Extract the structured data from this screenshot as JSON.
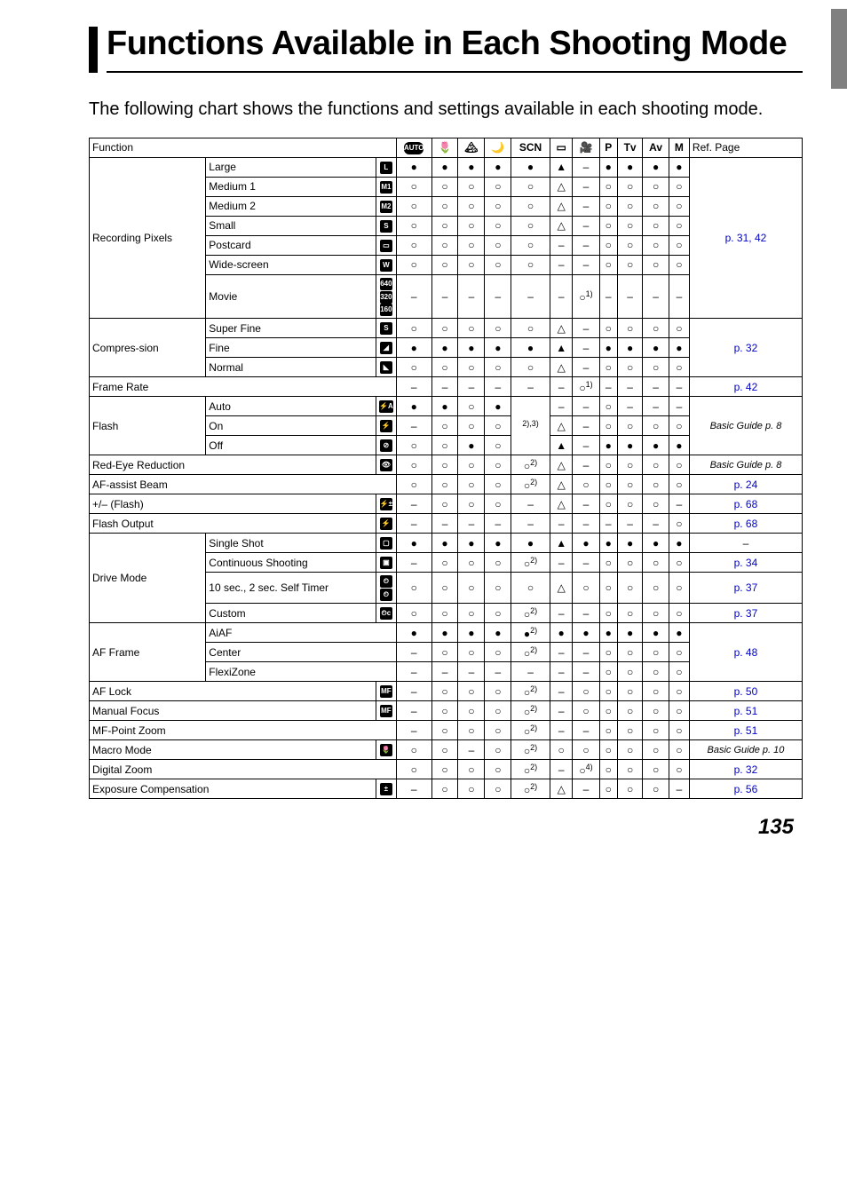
{
  "title": "Functions Available in Each Shooting Mode",
  "lead": "The following chart shows the functions and settings available in each shooting mode.",
  "headers": {
    "function": "Function",
    "refpage": "Ref. Page",
    "modes": [
      "AUTO",
      "🌷",
      "🏔",
      "🌙",
      "SCN",
      "▭",
      "🎥",
      "P",
      "Tv",
      "Av",
      "M"
    ]
  },
  "symbols": {
    "filled": "●",
    "hollow": "○",
    "triangle": "▲",
    "htri": "△",
    "dash": "–",
    "hollow1": "○<span class='sup'>1)</span>",
    "hollow2": "○<span class='sup'>2)</span>",
    "hollow4": "○<span class='sup'>4)</span>",
    "filled2": "●<span class='sup'>2)</span>",
    "note23": "<span class='sup'>2),3)</span>"
  },
  "groups": {
    "recording_pixels": "Recording Pixels",
    "compression": "Compres-sion",
    "flash": "Flash",
    "drive": "Drive Mode",
    "af": "AF Frame"
  },
  "rows": {
    "large": "Large",
    "medium1": "Medium 1",
    "medium2": "Medium 2",
    "small": "Small",
    "postcard": "Postcard",
    "widescreen": "Wide-screen",
    "movie": "Movie",
    "superfine": "Super Fine",
    "fine": "Fine",
    "normal": "Normal",
    "framerate": "Frame Rate",
    "auto": "Auto",
    "on": "On",
    "off": "Off",
    "redeye": "Red-Eye Reduction",
    "afassist": "AF-assist Beam",
    "plusminus": "+/– (Flash)",
    "flashout": "Flash Output",
    "single": "Single Shot",
    "continuous": "Continuous Shooting",
    "selftimer": "10 sec., 2 sec. Self Timer",
    "custom": "Custom",
    "aiaf": "AiAF",
    "center": "Center",
    "flexi": "FlexiZone",
    "aflock": "AF Lock",
    "mfocus": "Manual Focus",
    "mfzoom": "MF-Point Zoom",
    "macro": "Macro Mode",
    "dzoom": "Digital Zoom",
    "expcomp": "Exposure Compensation"
  },
  "icons": {
    "L": "L",
    "M1": "M1",
    "M2": "M2",
    "S": "S",
    "PC": "▭",
    "W": "W",
    "640": "640",
    "320": "320",
    "160": "160",
    "SF": "S",
    "F": "◢",
    "N": "◣",
    "FA": "⚡A",
    "FO": "⚡",
    "FX": "⊘",
    "RE": "👁",
    "PM": "⚡±",
    "FL": "⚡",
    "SS": "▢",
    "CS": "▣",
    "T1": "⏲",
    "T2": "⏲",
    "CT": "⏲c",
    "MF": "MF",
    "MC": "🌷",
    "EC": "±"
  },
  "refs": {
    "p31_42": "p. 31, 42",
    "p32": "p. 32",
    "p42": "p. 42",
    "bg8": "Basic Guide p. 8",
    "p24": "p. 24",
    "p68": "p. 68",
    "dash": "–",
    "p34": "p. 34",
    "p37": "p. 37",
    "p48": "p. 48",
    "p50": "p. 50",
    "p51": "p. 51",
    "bg10": "Basic Guide p. 10",
    "p56": "p. 56"
  },
  "pagenum": "135"
}
